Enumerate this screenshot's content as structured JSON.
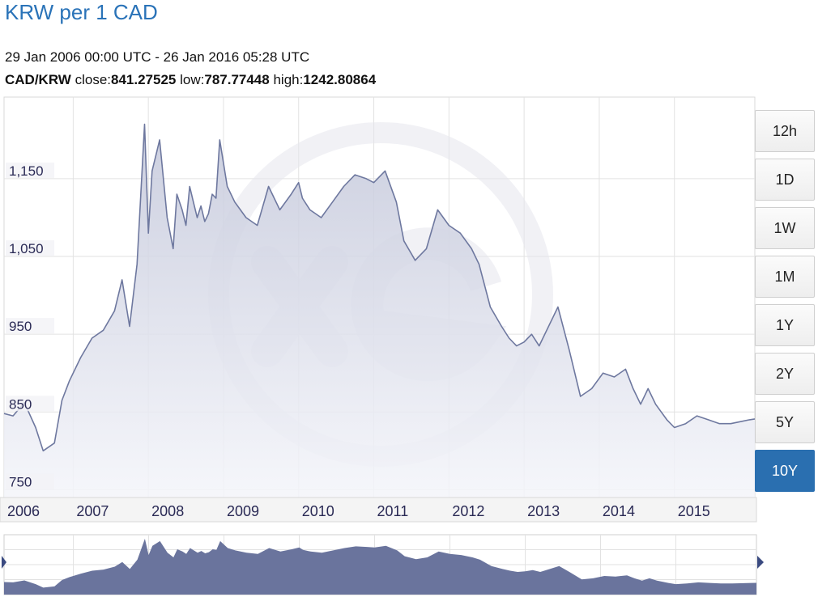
{
  "header": {
    "title": "KRW per 1 CAD",
    "date_range": "29 Jan 2006 00:00 UTC - 26 Jan 2016 05:28 UTC",
    "pair": "CAD/KRW",
    "close_label": "close:",
    "close_value": "841.27525",
    "low_label": "low:",
    "low_value": "787.77448",
    "high_label": "high:",
    "high_value": "1242.80864"
  },
  "range_buttons": [
    {
      "label": "12h",
      "active": false
    },
    {
      "label": "1D",
      "active": false
    },
    {
      "label": "1W",
      "active": false
    },
    {
      "label": "1M",
      "active": false
    },
    {
      "label": "1Y",
      "active": false
    },
    {
      "label": "2Y",
      "active": false
    },
    {
      "label": "5Y",
      "active": false
    },
    {
      "label": "10Y",
      "active": true
    }
  ],
  "colors": {
    "line": "#6e789f",
    "fill_top": "#c3c7da",
    "fill_bottom": "#f4f5fa",
    "nav_fill": "#6a749d",
    "grid": "#e2e2e2",
    "active_button": "#2a6fb0",
    "title": "#2a73b8",
    "watermark": "#e6e7ee"
  },
  "chart_data": {
    "type": "area",
    "title": "KRW per 1 CAD",
    "xlabel": "",
    "ylabel": "",
    "x_ticks": [
      "2006",
      "2007",
      "2008",
      "2009",
      "2010",
      "2011",
      "2012",
      "2013",
      "2014",
      "2015"
    ],
    "y_ticks": [
      750,
      850,
      950,
      1050,
      1150
    ],
    "y_tick_labels": [
      "750",
      "850",
      "950",
      "1,050",
      "1,150"
    ],
    "xlim": [
      2006.08,
      2016.07
    ],
    "ylim": [
      740,
      1255
    ],
    "grid": true,
    "series": [
      {
        "x": [
          2006.08,
          2006.2,
          2006.35,
          2006.5,
          2006.6,
          2006.75,
          2006.85,
          2006.95,
          2007.1,
          2007.25,
          2007.4,
          2007.55,
          2007.65,
          2007.75,
          2007.85,
          2007.95,
          2008.0,
          2008.05,
          2008.15,
          2008.25,
          2008.33,
          2008.38,
          2008.45,
          2008.5,
          2008.55,
          2008.6,
          2008.65,
          2008.7,
          2008.75,
          2008.8,
          2008.85,
          2008.9,
          2008.95,
          2009.05,
          2009.15,
          2009.3,
          2009.45,
          2009.6,
          2009.75,
          2009.9,
          2010.0,
          2010.05,
          2010.15,
          2010.3,
          2010.45,
          2010.6,
          2010.75,
          2010.9,
          2011.0,
          2011.15,
          2011.3,
          2011.4,
          2011.55,
          2011.7,
          2011.85,
          2012.0,
          2012.15,
          2012.3,
          2012.4,
          2012.55,
          2012.7,
          2012.8,
          2012.9,
          2013.0,
          2013.1,
          2013.2,
          2013.3,
          2013.45,
          2013.6,
          2013.75,
          2013.9,
          2014.05,
          2014.2,
          2014.35,
          2014.45,
          2014.55,
          2014.65,
          2014.75,
          2014.9,
          2015.0,
          2015.15,
          2015.3,
          2015.45,
          2015.6,
          2015.75,
          2015.9,
          2016.0,
          2016.07
        ],
        "y": [
          848,
          845,
          862,
          830,
          800,
          810,
          865,
          890,
          920,
          945,
          955,
          980,
          1020,
          960,
          1040,
          1220,
          1080,
          1160,
          1200,
          1100,
          1060,
          1130,
          1110,
          1090,
          1140,
          1120,
          1100,
          1115,
          1095,
          1105,
          1130,
          1125,
          1200,
          1140,
          1120,
          1100,
          1090,
          1140,
          1110,
          1130,
          1145,
          1125,
          1110,
          1100,
          1120,
          1140,
          1155,
          1150,
          1145,
          1160,
          1120,
          1070,
          1045,
          1060,
          1110,
          1090,
          1080,
          1060,
          1040,
          985,
          960,
          945,
          935,
          940,
          950,
          935,
          955,
          985,
          930,
          870,
          880,
          900,
          895,
          905,
          880,
          860,
          880,
          860,
          840,
          830,
          835,
          845,
          840,
          835,
          835,
          838,
          840,
          841
        ]
      }
    ]
  }
}
